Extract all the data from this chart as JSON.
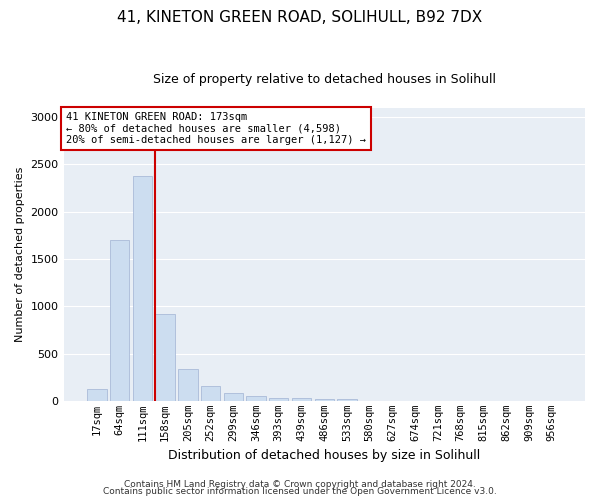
{
  "title_line1": "41, KINETON GREEN ROAD, SOLIHULL, B92 7DX",
  "title_line2": "Size of property relative to detached houses in Solihull",
  "xlabel": "Distribution of detached houses by size in Solihull",
  "ylabel": "Number of detached properties",
  "footnote1": "Contains HM Land Registry data © Crown copyright and database right 2024.",
  "footnote2": "Contains public sector information licensed under the Open Government Licence v3.0.",
  "bar_labels": [
    "17sqm",
    "64sqm",
    "111sqm",
    "158sqm",
    "205sqm",
    "252sqm",
    "299sqm",
    "346sqm",
    "393sqm",
    "439sqm",
    "486sqm",
    "533sqm",
    "580sqm",
    "627sqm",
    "674sqm",
    "721sqm",
    "768sqm",
    "815sqm",
    "862sqm",
    "909sqm",
    "956sqm"
  ],
  "bar_values": [
    130,
    1700,
    2380,
    920,
    340,
    160,
    80,
    50,
    35,
    27,
    22,
    20,
    0,
    0,
    0,
    0,
    0,
    0,
    0,
    0,
    0
  ],
  "bar_color": "#ccddf0",
  "bar_edge_color": "#aabbd8",
  "redline_index": 3,
  "annotation_title": "41 KINETON GREEN ROAD: 173sqm",
  "annotation_line1": "← 80% of detached houses are smaller (4,598)",
  "annotation_line2": "20% of semi-detached houses are larger (1,127) →",
  "annotation_box_facecolor": "#ffffff",
  "annotation_box_edgecolor": "#cc0000",
  "ylim": [
    0,
    3100
  ],
  "yticks": [
    0,
    500,
    1000,
    1500,
    2000,
    2500,
    3000
  ],
  "fig_bg_color": "#ffffff",
  "axes_bg_color": "#e8eef5",
  "grid_color": "#ffffff",
  "title1_fontsize": 11,
  "title2_fontsize": 9,
  "ylabel_fontsize": 8,
  "xlabel_fontsize": 9,
  "footnote_fontsize": 6.5,
  "tick_fontsize": 7.5,
  "annot_fontsize": 7.5
}
